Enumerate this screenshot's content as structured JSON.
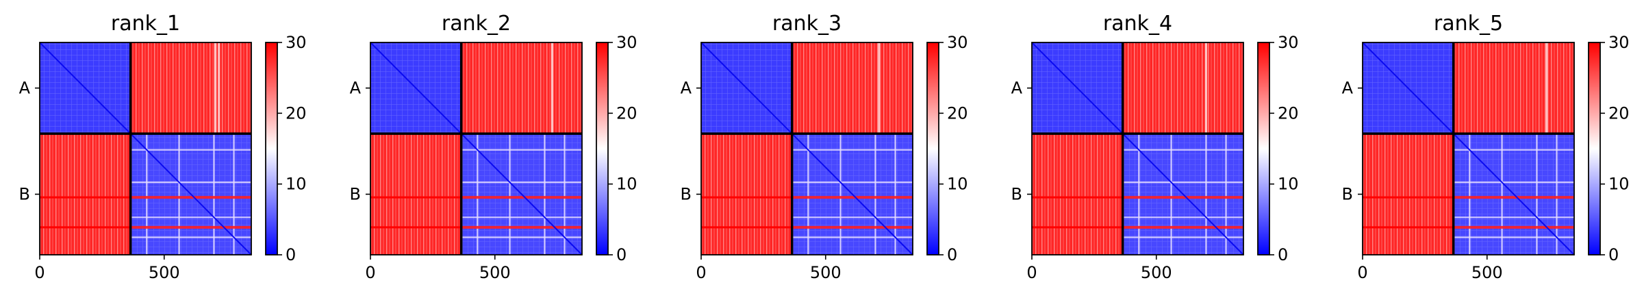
{
  "chart_data": {
    "type": "heatmap",
    "colormap": {
      "name": "bwr",
      "low": "#0000ff",
      "mid": "#ffffff",
      "high": "#ff0000"
    },
    "vmin": 0,
    "vmax": 30,
    "colorbar_ticks": [
      "0",
      "10",
      "20",
      "30"
    ],
    "xlim": [
      0,
      850
    ],
    "x_ticks": [
      0,
      500
    ],
    "x_tick_labels": [
      "0",
      "500"
    ],
    "y_tick_labels": [
      "A",
      "B"
    ],
    "chain_boundary": 365,
    "matrix_size": 850,
    "panels": [
      {
        "title": "rank_1",
        "bright_columns": [
          705,
          720
        ]
      },
      {
        "title": "rank_2",
        "bright_columns": [
          730
        ]
      },
      {
        "title": "rank_3",
        "bright_columns": [
          715
        ]
      },
      {
        "title": "rank_4",
        "bright_columns": [
          700
        ]
      },
      {
        "title": "rank_5",
        "bright_columns": [
          740
        ]
      }
    ]
  }
}
